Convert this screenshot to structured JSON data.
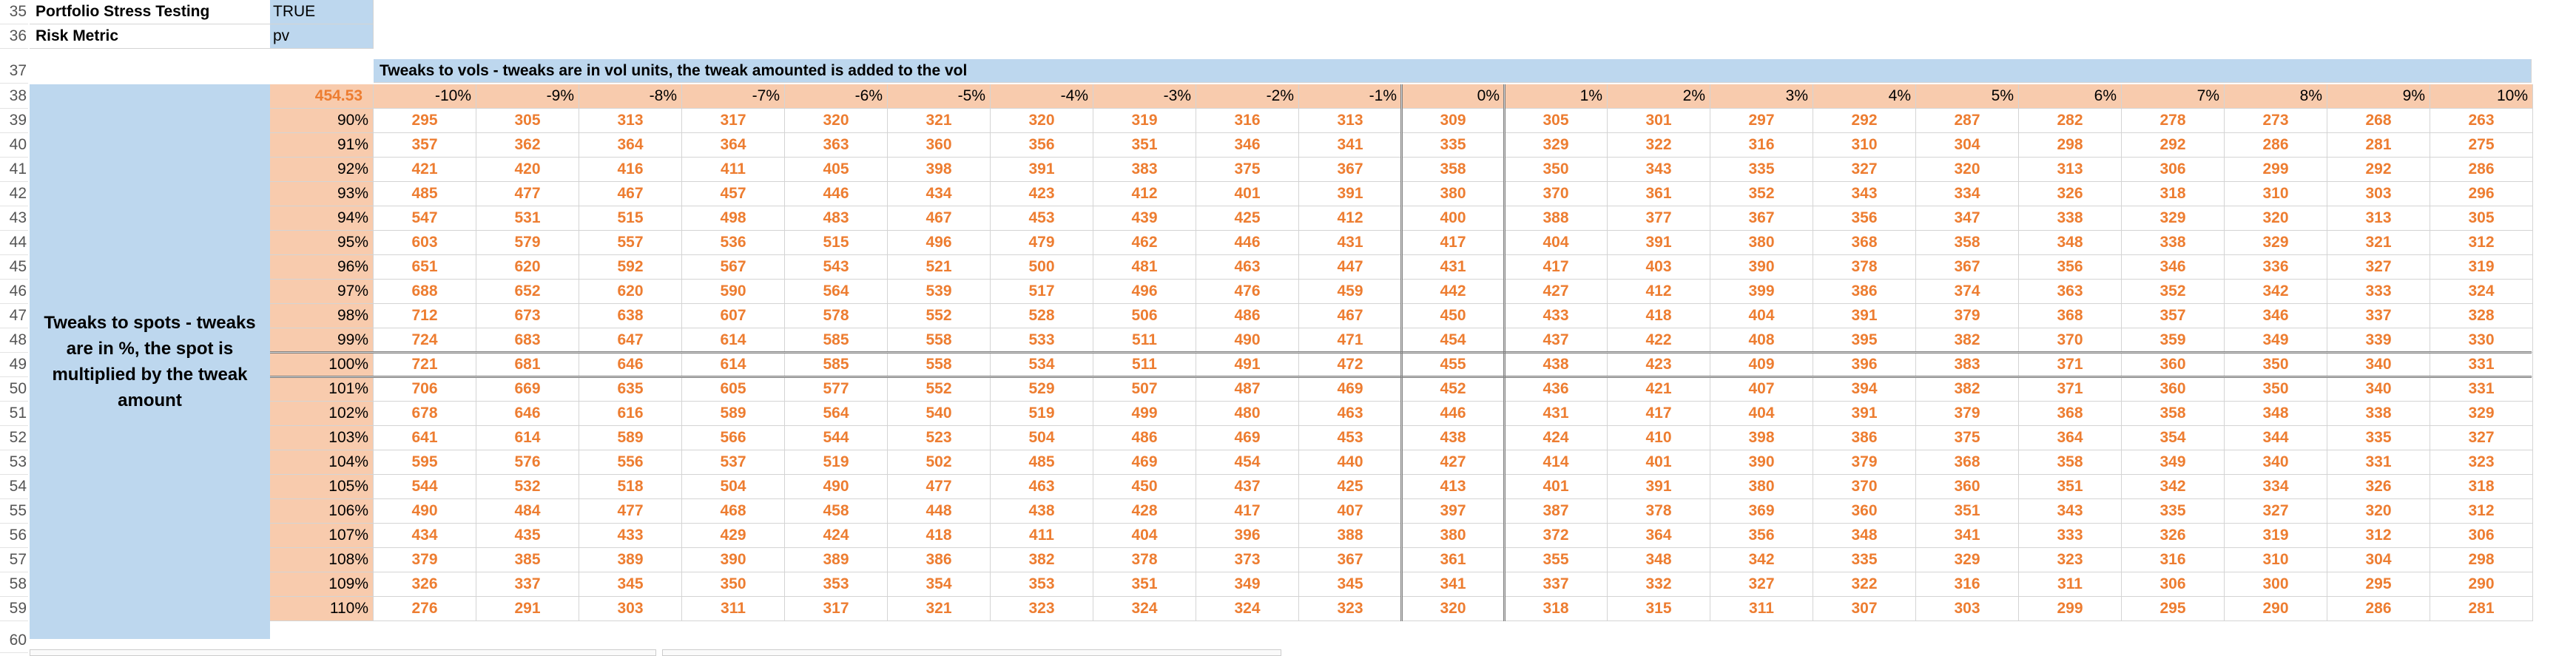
{
  "row_numbers": [
    "35",
    "36",
    "37",
    "38",
    "39",
    "40",
    "41",
    "42",
    "43",
    "44",
    "45",
    "46",
    "47",
    "48",
    "49",
    "50",
    "51",
    "52",
    "53",
    "54",
    "55",
    "56",
    "57",
    "58",
    "59",
    "60"
  ],
  "settings": {
    "stress_label": "Portfolio Stress Testing",
    "stress_value": "TRUE",
    "risk_label": "Risk Metric",
    "risk_value": "pv"
  },
  "banner": "Tweaks to vols - tweaks are in vol units, the tweak amounted is added to the vol",
  "spot_side_label": "Tweaks to spots - tweaks are in %, the spot is multiplied by the tweak amount",
  "base_value": "454.53",
  "vol_tweaks": [
    "-10%",
    "-9%",
    "-8%",
    "-7%",
    "-6%",
    "-5%",
    "-4%",
    "-3%",
    "-2%",
    "-1%",
    "0%",
    "1%",
    "2%",
    "3%",
    "4%",
    "5%",
    "6%",
    "7%",
    "8%",
    "9%",
    "10%"
  ],
  "spot_tweaks": [
    "90%",
    "91%",
    "92%",
    "93%",
    "94%",
    "95%",
    "96%",
    "97%",
    "98%",
    "99%",
    "100%",
    "101%",
    "102%",
    "103%",
    "104%",
    "105%",
    "106%",
    "107%",
    "108%",
    "109%",
    "110%"
  ],
  "grid": [
    [
      "295",
      "305",
      "313",
      "317",
      "320",
      "321",
      "320",
      "319",
      "316",
      "313",
      "309",
      "305",
      "301",
      "297",
      "292",
      "287",
      "282",
      "278",
      "273",
      "268",
      "263"
    ],
    [
      "357",
      "362",
      "364",
      "364",
      "363",
      "360",
      "356",
      "351",
      "346",
      "341",
      "335",
      "329",
      "322",
      "316",
      "310",
      "304",
      "298",
      "292",
      "286",
      "281",
      "275"
    ],
    [
      "421",
      "420",
      "416",
      "411",
      "405",
      "398",
      "391",
      "383",
      "375",
      "367",
      "358",
      "350",
      "343",
      "335",
      "327",
      "320",
      "313",
      "306",
      "299",
      "292",
      "286"
    ],
    [
      "485",
      "477",
      "467",
      "457",
      "446",
      "434",
      "423",
      "412",
      "401",
      "391",
      "380",
      "370",
      "361",
      "352",
      "343",
      "334",
      "326",
      "318",
      "310",
      "303",
      "296"
    ],
    [
      "547",
      "531",
      "515",
      "498",
      "483",
      "467",
      "453",
      "439",
      "425",
      "412",
      "400",
      "388",
      "377",
      "367",
      "356",
      "347",
      "338",
      "329",
      "320",
      "313",
      "305"
    ],
    [
      "603",
      "579",
      "557",
      "536",
      "515",
      "496",
      "479",
      "462",
      "446",
      "431",
      "417",
      "404",
      "391",
      "380",
      "368",
      "358",
      "348",
      "338",
      "329",
      "321",
      "312"
    ],
    [
      "651",
      "620",
      "592",
      "567",
      "543",
      "521",
      "500",
      "481",
      "463",
      "447",
      "431",
      "417",
      "403",
      "390",
      "378",
      "367",
      "356",
      "346",
      "336",
      "327",
      "319"
    ],
    [
      "688",
      "652",
      "620",
      "590",
      "564",
      "539",
      "517",
      "496",
      "476",
      "459",
      "442",
      "427",
      "412",
      "399",
      "386",
      "374",
      "363",
      "352",
      "342",
      "333",
      "324"
    ],
    [
      "712",
      "673",
      "638",
      "607",
      "578",
      "552",
      "528",
      "506",
      "486",
      "467",
      "450",
      "433",
      "418",
      "404",
      "391",
      "379",
      "368",
      "357",
      "346",
      "337",
      "328"
    ],
    [
      "724",
      "683",
      "647",
      "614",
      "585",
      "558",
      "533",
      "511",
      "490",
      "471",
      "454",
      "437",
      "422",
      "408",
      "395",
      "382",
      "370",
      "359",
      "349",
      "339",
      "330"
    ],
    [
      "721",
      "681",
      "646",
      "614",
      "585",
      "558",
      "534",
      "511",
      "491",
      "472",
      "455",
      "438",
      "423",
      "409",
      "396",
      "383",
      "371",
      "360",
      "350",
      "340",
      "331"
    ],
    [
      "706",
      "669",
      "635",
      "605",
      "577",
      "552",
      "529",
      "507",
      "487",
      "469",
      "452",
      "436",
      "421",
      "407",
      "394",
      "382",
      "371",
      "360",
      "350",
      "340",
      "331"
    ],
    [
      "678",
      "646",
      "616",
      "589",
      "564",
      "540",
      "519",
      "499",
      "480",
      "463",
      "446",
      "431",
      "417",
      "404",
      "391",
      "379",
      "368",
      "358",
      "348",
      "338",
      "329"
    ],
    [
      "641",
      "614",
      "589",
      "566",
      "544",
      "523",
      "504",
      "486",
      "469",
      "453",
      "438",
      "424",
      "410",
      "398",
      "386",
      "375",
      "364",
      "354",
      "344",
      "335",
      "327"
    ],
    [
      "595",
      "576",
      "556",
      "537",
      "519",
      "502",
      "485",
      "469",
      "454",
      "440",
      "427",
      "414",
      "401",
      "390",
      "379",
      "368",
      "358",
      "349",
      "340",
      "331",
      "323"
    ],
    [
      "544",
      "532",
      "518",
      "504",
      "490",
      "477",
      "463",
      "450",
      "437",
      "425",
      "413",
      "401",
      "391",
      "380",
      "370",
      "360",
      "351",
      "342",
      "334",
      "326",
      "318"
    ],
    [
      "490",
      "484",
      "477",
      "468",
      "458",
      "448",
      "438",
      "428",
      "417",
      "407",
      "397",
      "387",
      "378",
      "369",
      "360",
      "351",
      "343",
      "335",
      "327",
      "320",
      "312"
    ],
    [
      "434",
      "435",
      "433",
      "429",
      "424",
      "418",
      "411",
      "404",
      "396",
      "388",
      "380",
      "372",
      "364",
      "356",
      "348",
      "341",
      "333",
      "326",
      "319",
      "312",
      "306"
    ],
    [
      "379",
      "385",
      "389",
      "390",
      "389",
      "386",
      "382",
      "378",
      "373",
      "367",
      "361",
      "355",
      "348",
      "342",
      "335",
      "329",
      "323",
      "316",
      "310",
      "304",
      "298"
    ],
    [
      "326",
      "337",
      "345",
      "350",
      "353",
      "354",
      "353",
      "351",
      "349",
      "345",
      "341",
      "337",
      "332",
      "327",
      "322",
      "316",
      "311",
      "306",
      "300",
      "295",
      "290"
    ],
    [
      "276",
      "291",
      "303",
      "311",
      "317",
      "321",
      "323",
      "324",
      "324",
      "323",
      "320",
      "318",
      "315",
      "311",
      "307",
      "303",
      "299",
      "295",
      "290",
      "286",
      "281"
    ]
  ],
  "colors": {
    "input_fill": "#bdd7ee",
    "header_fill": "#f8cbad",
    "value_text": "#ed7d31"
  }
}
